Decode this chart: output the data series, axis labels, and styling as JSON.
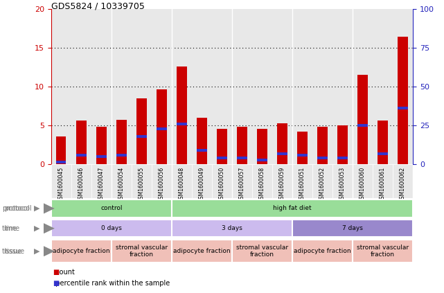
{
  "title": "GDS5824 / 10339705",
  "samples": [
    "GSM1600045",
    "GSM1600046",
    "GSM1600047",
    "GSM1600054",
    "GSM1600055",
    "GSM1600056",
    "GSM1600048",
    "GSM1600049",
    "GSM1600050",
    "GSM1600057",
    "GSM1600058",
    "GSM1600059",
    "GSM1600051",
    "GSM1600052",
    "GSM1600053",
    "GSM1600060",
    "GSM1600061",
    "GSM1600062"
  ],
  "count_values": [
    3.6,
    5.6,
    4.8,
    5.7,
    8.5,
    9.6,
    12.6,
    6.0,
    4.6,
    4.8,
    4.6,
    5.3,
    4.2,
    4.8,
    5.0,
    11.5,
    5.6,
    16.4
  ],
  "percentile_values": [
    0.3,
    1.2,
    1.0,
    1.2,
    3.6,
    4.6,
    5.2,
    1.8,
    0.8,
    0.8,
    0.6,
    1.4,
    1.2,
    0.8,
    0.8,
    5.0,
    1.4,
    7.2
  ],
  "ylim_left": [
    0,
    20
  ],
  "ylim_right": [
    0,
    100
  ],
  "yticks_left": [
    0,
    5,
    10,
    15,
    20
  ],
  "yticks_right": [
    0,
    25,
    50,
    75,
    100
  ],
  "bar_color_count": "#cc0000",
  "bar_color_percentile": "#3333cc",
  "bar_width": 0.5,
  "left_axis_color": "#cc0000",
  "right_axis_color": "#2222bb",
  "panel_bg": "#e8e8e8",
  "bg_color": "#ffffff",
  "prot_groups": [
    {
      "label": "control",
      "start": 0,
      "end": 6,
      "color": "#99dd99"
    },
    {
      "label": "high fat diet",
      "start": 6,
      "end": 18,
      "color": "#99dd99"
    }
  ],
  "time_groups": [
    {
      "label": "0 days",
      "start": 0,
      "end": 6,
      "color": "#ccbbee"
    },
    {
      "label": "3 days",
      "start": 6,
      "end": 12,
      "color": "#ccbbee"
    },
    {
      "label": "7 days",
      "start": 12,
      "end": 18,
      "color": "#9988cc"
    }
  ],
  "tissue_groups": [
    {
      "label": "adipocyte fraction",
      "start": 0,
      "end": 3,
      "color": "#f0c0b8"
    },
    {
      "label": "stromal vascular\nfraction",
      "start": 3,
      "end": 6,
      "color": "#f0c0b8"
    },
    {
      "label": "adipocyte fraction",
      "start": 6,
      "end": 9,
      "color": "#f0c0b8"
    },
    {
      "label": "stromal vascular\nfraction",
      "start": 9,
      "end": 12,
      "color": "#f0c0b8"
    },
    {
      "label": "adipocyte fraction",
      "start": 12,
      "end": 15,
      "color": "#f0c0b8"
    },
    {
      "label": "stromal vascular\nfraction",
      "start": 15,
      "end": 18,
      "color": "#f0c0b8"
    }
  ],
  "label_color": "#777777",
  "arrow_color": "#888888"
}
